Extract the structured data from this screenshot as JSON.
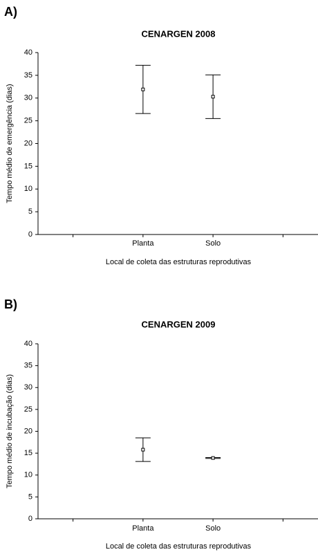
{
  "chart_data": [
    {
      "type": "errorbar",
      "panel_label": "A)",
      "title": "CENARGEN 2008",
      "y_label": "Tempo médio de emergência (dias)",
      "x_label": "Local de coleta das estruturas reprodutivas",
      "categories": [
        null,
        "Planta",
        "Solo",
        null
      ],
      "values": [
        null,
        31.9,
        30.3,
        null
      ],
      "errors": [
        null,
        5.3,
        4.8,
        null
      ],
      "color": "#000000",
      "ylim": [
        0,
        40
      ],
      "yticks": [
        0,
        5,
        10,
        15,
        20,
        25,
        30,
        35,
        40
      ]
    },
    {
      "type": "errorbar",
      "panel_label": "B)",
      "title": "CENARGEN 2009",
      "y_label": "Tempo médio de incubação (dias)",
      "x_label": "Local de coleta das estruturas reprodutivas",
      "categories": [
        null,
        "Planta",
        "Solo",
        null
      ],
      "values": [
        null,
        15.8,
        13.9,
        null
      ],
      "errors": [
        null,
        2.7,
        0.1,
        null
      ],
      "color": "#000000",
      "ylim": [
        0,
        40
      ],
      "yticks": [
        0,
        5,
        10,
        15,
        20,
        25,
        30,
        35,
        40
      ]
    }
  ]
}
